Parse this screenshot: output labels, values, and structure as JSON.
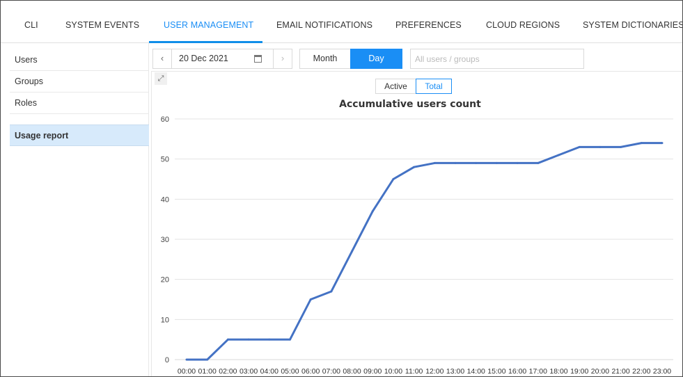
{
  "tabs": [
    {
      "label": "CLI",
      "active": false
    },
    {
      "label": "SYSTEM EVENTS",
      "active": false
    },
    {
      "label": "USER MANAGEMENT",
      "active": true
    },
    {
      "label": "EMAIL NOTIFICATIONS",
      "active": false
    },
    {
      "label": "PREFERENCES",
      "active": false
    },
    {
      "label": "CLOUD REGIONS",
      "active": false
    },
    {
      "label": "SYSTEM DICTIONARIES",
      "active": false
    }
  ],
  "sidebar": {
    "items": [
      {
        "label": "Users",
        "active": false
      },
      {
        "label": "Groups",
        "active": false
      },
      {
        "label": "Roles",
        "active": false
      },
      {
        "label": "Usage report",
        "active": true
      }
    ]
  },
  "toolbar": {
    "prev_icon": "chevron-left-icon",
    "next_icon": "chevron-right-icon",
    "date": "20 Dec 2021",
    "calendar_icon": "calendar-icon",
    "period_month": "Month",
    "period_day": "Day",
    "period_selected": "Day",
    "filter_placeholder": "All users / groups"
  },
  "chart_toggle": {
    "active_label": "Active",
    "total_label": "Total",
    "selected": "Total"
  },
  "accent_color": "#1a8ef5",
  "chart_data": {
    "type": "line",
    "title": "Accumulative users count",
    "xlabel": "",
    "ylabel": "",
    "ylim": [
      0,
      60
    ],
    "yticks": [
      0,
      10,
      20,
      30,
      40,
      50,
      60
    ],
    "grid": true,
    "categories": [
      "00:00",
      "01:00",
      "02:00",
      "03:00",
      "04:00",
      "05:00",
      "06:00",
      "07:00",
      "08:00",
      "09:00",
      "10:00",
      "11:00",
      "12:00",
      "13:00",
      "14:00",
      "15:00",
      "16:00",
      "17:00",
      "18:00",
      "19:00",
      "20:00",
      "21:00",
      "22:00",
      "23:00"
    ],
    "series": [
      {
        "color": "#4472c4",
        "values": [
          0,
          0,
          5,
          5,
          5,
          5,
          15,
          17,
          27,
          37,
          45,
          48,
          49,
          49,
          49,
          49,
          49,
          49,
          51,
          53,
          53,
          53,
          54,
          54
        ]
      }
    ]
  }
}
